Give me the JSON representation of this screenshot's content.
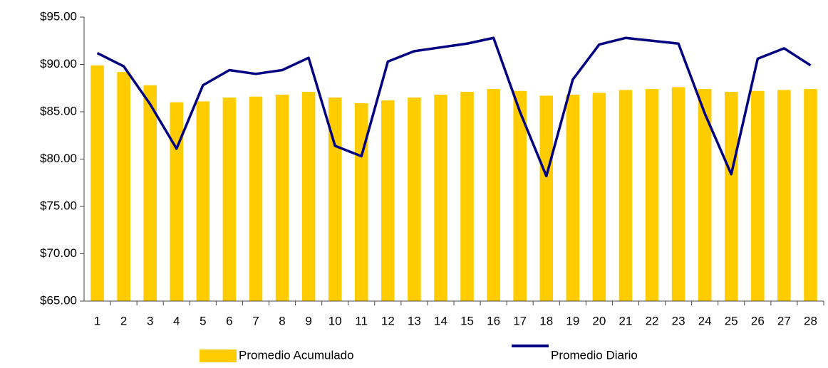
{
  "chart_data": {
    "type": "combo",
    "categories": [
      "1",
      "2",
      "3",
      "4",
      "5",
      "6",
      "7",
      "8",
      "9",
      "10",
      "11",
      "12",
      "13",
      "14",
      "15",
      "16",
      "17",
      "18",
      "19",
      "20",
      "21",
      "22",
      "23",
      "24",
      "25",
      "26",
      "27",
      "28"
    ],
    "series": [
      {
        "name": "Promedio Acumulado",
        "type": "bar",
        "color": "#ffcc00",
        "values": [
          89.9,
          89.2,
          87.8,
          86.0,
          86.1,
          86.5,
          86.6,
          86.8,
          87.1,
          86.5,
          85.9,
          86.2,
          86.5,
          86.8,
          87.1,
          87.4,
          87.2,
          86.7,
          86.8,
          87.0,
          87.3,
          87.4,
          87.6,
          87.4,
          87.1,
          87.2,
          87.3,
          87.4
        ]
      },
      {
        "name": "Promedio Diario",
        "type": "line",
        "color": "#000080",
        "values": [
          91.2,
          89.8,
          85.8,
          81.1,
          87.8,
          89.4,
          89.0,
          89.4,
          90.7,
          81.4,
          80.3,
          90.3,
          91.4,
          91.8,
          92.2,
          92.8,
          85.0,
          78.2,
          88.4,
          92.1,
          92.8,
          92.5,
          92.2,
          84.8,
          78.4,
          90.6,
          91.7,
          89.9
        ]
      }
    ],
    "ylim": [
      65,
      95
    ],
    "yticks": [
      {
        "value": 65,
        "label": "$65.00"
      },
      {
        "value": 70,
        "label": "$70.00"
      },
      {
        "value": 75,
        "label": "$75.00"
      },
      {
        "value": 80,
        "label": "$80.00"
      },
      {
        "value": 85,
        "label": "$85.00"
      },
      {
        "value": 90,
        "label": "$90.00"
      },
      {
        "value": 95,
        "label": "$95.00"
      }
    ],
    "grid": false,
    "legend": "bottom"
  }
}
